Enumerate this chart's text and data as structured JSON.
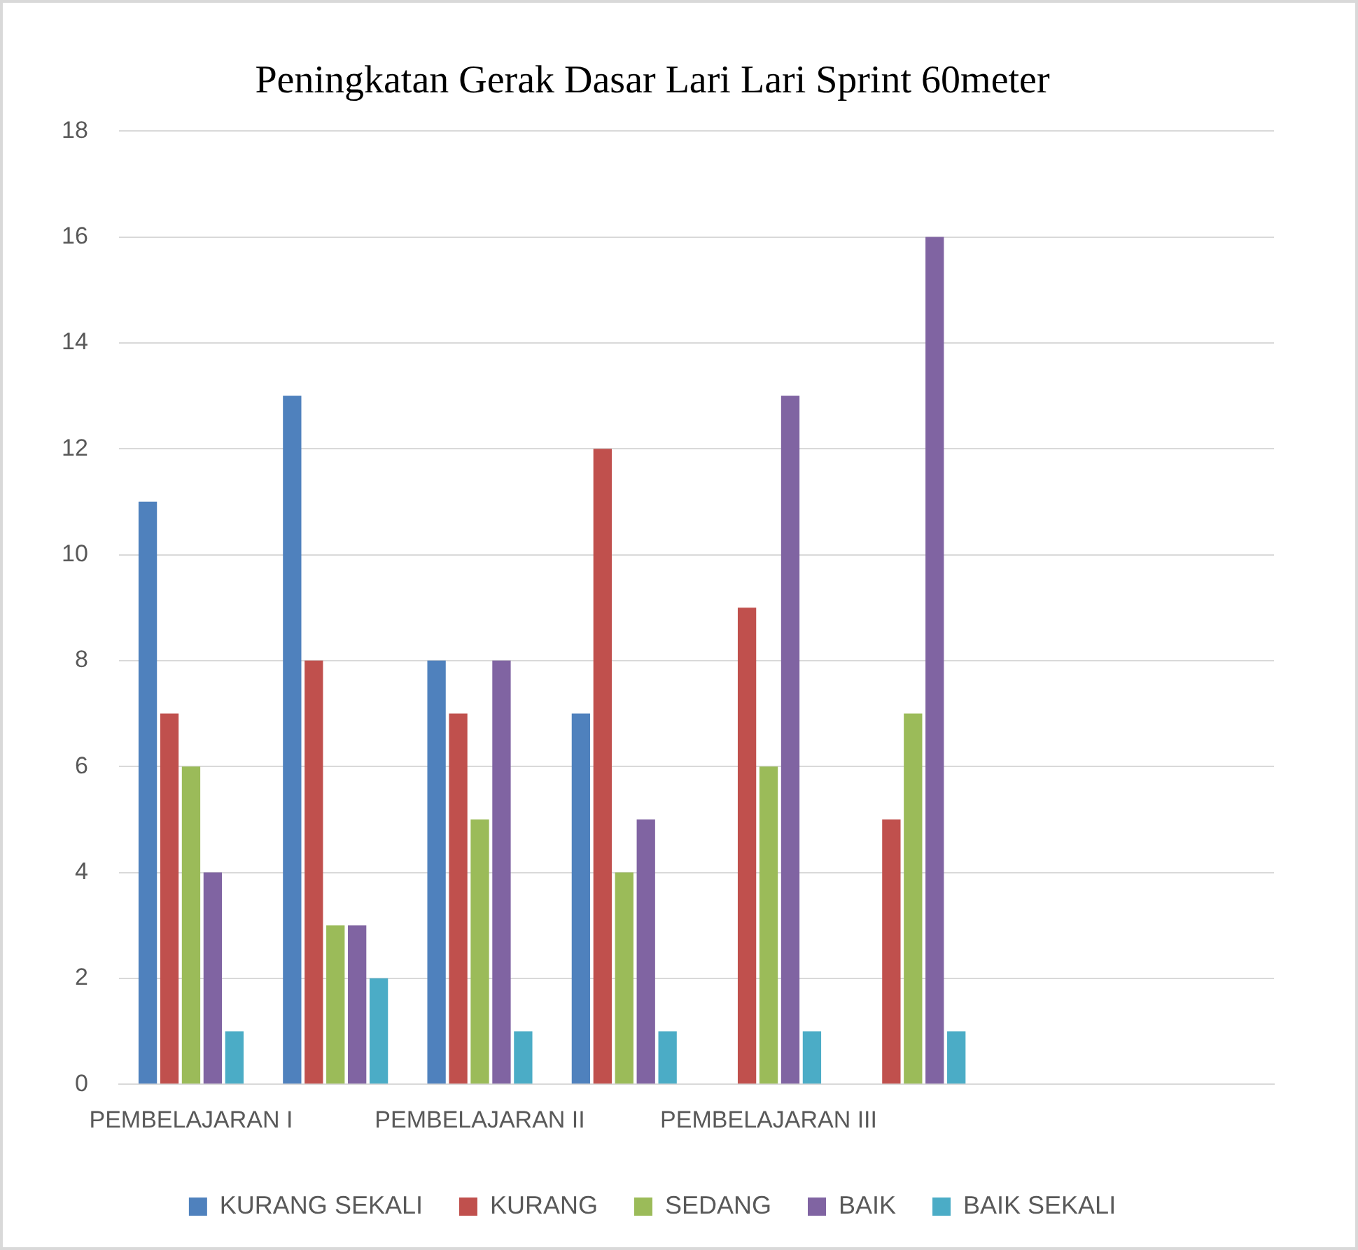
{
  "chart_data": {
    "type": "bar",
    "title": "Peningkatan Gerak Dasar Lari Lari Sprint 60meter",
    "categories": [
      "PEMBELAJARAN I",
      null,
      "PEMBELAJARAN II",
      null,
      "PEMBELAJARAN III",
      null,
      null,
      null
    ],
    "series": [
      {
        "name": "KURANG SEKALI",
        "color": "#4f81bd",
        "values": [
          11,
          13,
          8,
          7,
          null,
          null,
          null,
          null
        ]
      },
      {
        "name": "KURANG",
        "color": "#c0504d",
        "values": [
          7,
          8,
          7,
          12,
          9,
          5,
          null,
          null
        ]
      },
      {
        "name": "SEDANG",
        "color": "#9bbb59",
        "values": [
          6,
          3,
          5,
          4,
          6,
          7,
          null,
          null
        ]
      },
      {
        "name": "BAIK",
        "color": "#8064a2",
        "values": [
          4,
          3,
          8,
          5,
          13,
          16,
          null,
          null
        ]
      },
      {
        "name": "BAIK SEKALI",
        "color": "#4bacc6",
        "values": [
          1,
          2,
          1,
          1,
          1,
          1,
          null,
          null
        ]
      }
    ],
    "ylim": [
      0,
      18
    ],
    "yticks": [
      0,
      2,
      4,
      6,
      8,
      10,
      12,
      14,
      16,
      18
    ],
    "grid": "y",
    "legend": "bottom"
  }
}
